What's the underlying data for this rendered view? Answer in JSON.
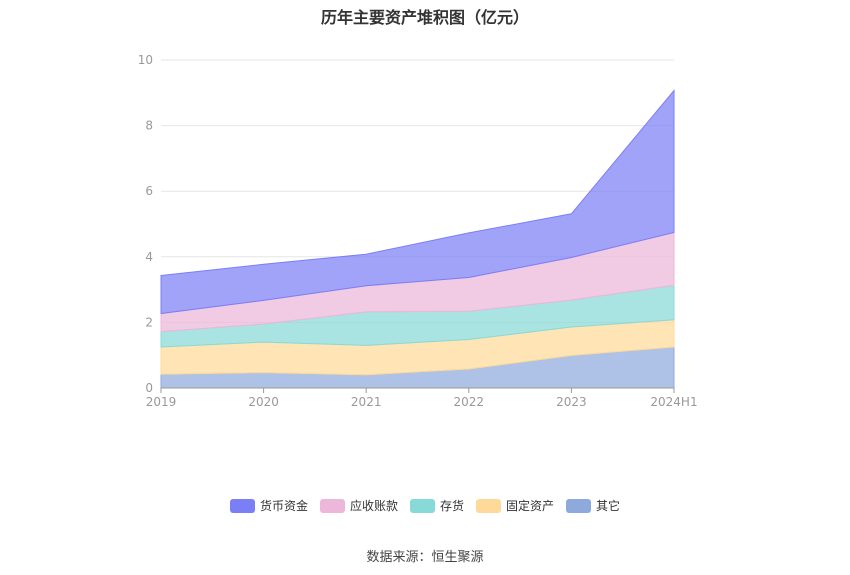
{
  "title": "历年主要资产堆积图（亿元）",
  "source_label": "数据来源：恒生聚源",
  "chart_data": {
    "type": "area",
    "stacked": true,
    "categories": [
      "2019",
      "2020",
      "2021",
      "2022",
      "2023",
      "2024H1"
    ],
    "ylim": [
      0,
      10
    ],
    "yticks": [
      "0",
      "2",
      "4",
      "6",
      "8",
      "10"
    ],
    "grid": true,
    "legend_position": "bottom",
    "series": [
      {
        "name": "其它",
        "color": "#8eaadc",
        "values": [
          0.42,
          0.47,
          0.4,
          0.58,
          0.99,
          1.25
        ]
      },
      {
        "name": "固定资产",
        "color": "#ffd99a",
        "values": [
          0.83,
          0.93,
          0.9,
          0.9,
          0.87,
          0.83
        ]
      },
      {
        "name": "存货",
        "color": "#88dad8",
        "values": [
          0.47,
          0.55,
          1.02,
          0.86,
          0.82,
          1.05
        ]
      },
      {
        "name": "应收账款",
        "color": "#ecb7d9",
        "values": [
          0.55,
          0.72,
          0.8,
          1.03,
          1.3,
          1.61
        ]
      },
      {
        "name": "货币资金",
        "color": "#7b7ff5",
        "values": [
          1.16,
          1.1,
          0.96,
          1.36,
          1.33,
          4.33
        ]
      }
    ]
  }
}
